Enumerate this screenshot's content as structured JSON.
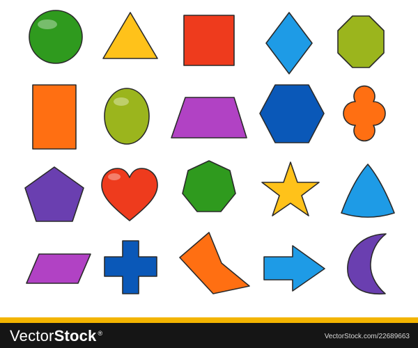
{
  "watermark": {
    "brand_part1": "Vector",
    "brand_part2": "Stock",
    "brand_mark": "®",
    "url": "VectorStock.com/22689663"
  },
  "colors": {
    "green": "#2f9a1e",
    "yellow": "#ffc21a",
    "red": "#ee3b1d",
    "light_blue": "#1e9be6",
    "olive": "#9bb51d",
    "orange": "#ff6f12",
    "magenta": "#b142c4",
    "blue": "#0a58b8",
    "purple": "#6a3fb0",
    "footer_stripe": "#f3b400",
    "footer_bar": "#151515"
  },
  "shapes": [
    {
      "name": "circle",
      "color": "green"
    },
    {
      "name": "triangle",
      "color": "yellow"
    },
    {
      "name": "square",
      "color": "red"
    },
    {
      "name": "rhombus",
      "color": "light_blue"
    },
    {
      "name": "octagon",
      "color": "olive"
    },
    {
      "name": "rectangle",
      "color": "orange"
    },
    {
      "name": "oval",
      "color": "olive"
    },
    {
      "name": "trapezoid",
      "color": "magenta"
    },
    {
      "name": "hexagon",
      "color": "blue"
    },
    {
      "name": "quatrefoil",
      "color": "orange"
    },
    {
      "name": "pentagon",
      "color": "purple"
    },
    {
      "name": "heart",
      "color": "red"
    },
    {
      "name": "heptagon",
      "color": "green"
    },
    {
      "name": "star",
      "color": "yellow"
    },
    {
      "name": "reuleaux-triangle",
      "color": "light_blue"
    },
    {
      "name": "parallelogram",
      "color": "magenta"
    },
    {
      "name": "cross",
      "color": "blue"
    },
    {
      "name": "arrowhead",
      "color": "orange"
    },
    {
      "name": "arrow",
      "color": "light_blue"
    },
    {
      "name": "crescent",
      "color": "purple"
    }
  ]
}
